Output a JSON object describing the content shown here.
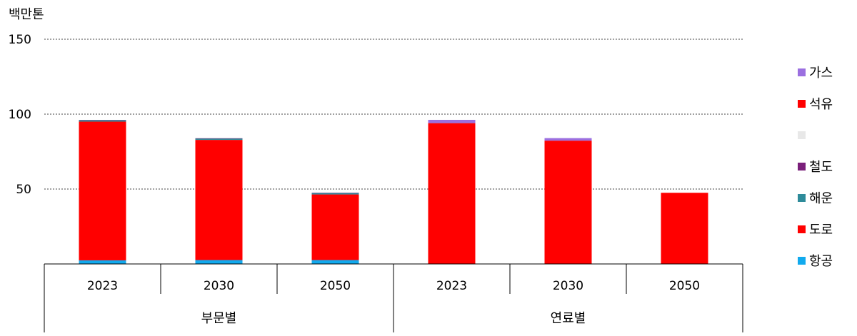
{
  "chart_data": {
    "type": "bar",
    "stacked": true,
    "ylabel": "백만톤",
    "ylim": [
      0,
      150
    ],
    "yticks": [
      50,
      100,
      150
    ],
    "grid": "horizontal dotted",
    "legend_position": "right",
    "groups": [
      "부문별",
      "연료별"
    ],
    "categories": [
      "2023",
      "2030",
      "2050",
      "2023",
      "2030",
      "2050"
    ],
    "series": [
      {
        "name": "항공",
        "color": "#11aaee",
        "values": [
          2.4,
          2.6,
          2.6,
          0,
          0,
          0
        ]
      },
      {
        "name": "도로",
        "color": "#ff0000",
        "values": [
          92.6,
          80.2,
          43.8,
          0,
          0,
          0
        ]
      },
      {
        "name": "해운",
        "color": "#2e8b9a",
        "values": [
          1.0,
          1.0,
          1.0,
          0,
          0,
          0
        ]
      },
      {
        "name": "철도",
        "color": "#7a1f7a",
        "values": [
          0.1,
          0.1,
          0.1,
          0,
          0,
          0
        ]
      },
      {
        "name": "",
        "color": "#e8e8e8",
        "values": [
          0,
          0,
          0,
          0,
          0,
          0
        ]
      },
      {
        "name": "석유",
        "color": "#ff0000",
        "values": [
          0,
          0,
          0,
          94.0,
          82.3,
          47.5
        ]
      },
      {
        "name": "가스",
        "color": "#9b6fe0",
        "values": [
          0,
          0,
          0,
          2.2,
          1.7,
          0
        ]
      }
    ]
  }
}
